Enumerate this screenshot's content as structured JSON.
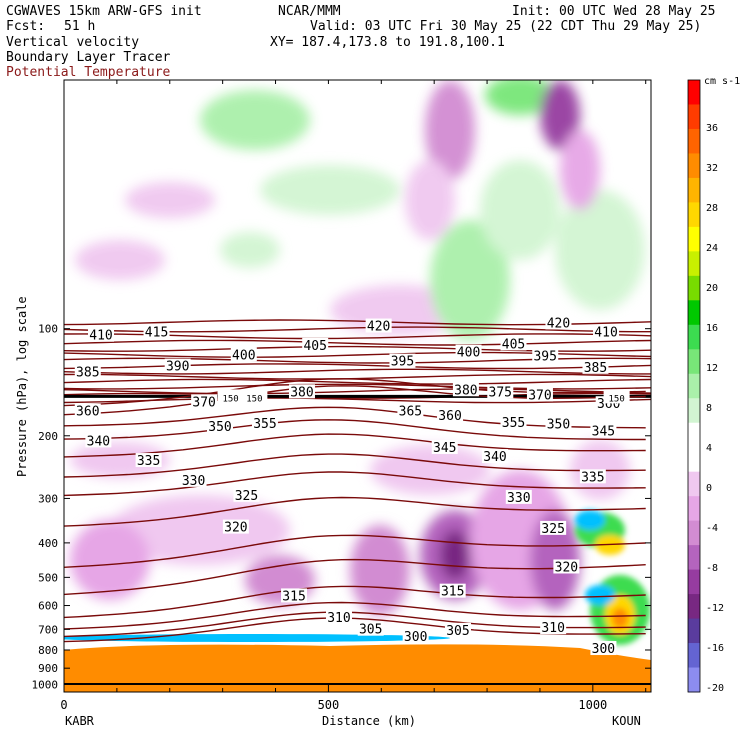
{
  "header": {
    "title_left": "CGWAVES 15km ARW-GFS init",
    "fcst_label": "Fcst:",
    "fcst_value": "51 h",
    "field1": "Vertical velocity",
    "field2": "Boundary Layer Tracer",
    "field3": "Potential Temperature",
    "org": "NCAR/MMM",
    "init": "Init: 00 UTC Wed 28 May 25",
    "valid": "Valid: 03 UTC Fri 30 May 25 (22 CDT Thu 29 May 25)",
    "xy": "XY= 187.4,173.8 to 191.8,100.1"
  },
  "colors": {
    "theta": "#7a0a0a",
    "field3_text": "#8b1a1a",
    "terrain": "#ff8c00"
  },
  "chart_data": {
    "type": "heatmap",
    "xlabel": "Distance (km)",
    "ylabel": "Pressure (hPa), log scale",
    "x_ticks": [
      0,
      500,
      1000
    ],
    "xlim": [
      0,
      1110
    ],
    "y_ticks": [
      100,
      200,
      300,
      400,
      500,
      600,
      700,
      800,
      900,
      1000
    ],
    "ylim": [
      1050,
      20
    ],
    "y_scale": "log",
    "left_station": "KABR",
    "right_station": "KOUN",
    "colorbar": {
      "units": "cm s-1",
      "ticks": [
        36,
        32,
        28,
        24,
        20,
        16,
        12,
        8,
        4,
        0,
        -4,
        -8,
        -12,
        -16,
        -20
      ],
      "colors": [
        "#ff0000",
        "#ff3c00",
        "#ff6400",
        "#ff8c00",
        "#ffb400",
        "#ffd700",
        "#ffff00",
        "#c8f000",
        "#78dc00",
        "#00c800",
        "#3cdc50",
        "#78e678",
        "#aaf0aa",
        "#d2f5d2",
        "#ffffff",
        "#ffffff",
        "#f0c8f0",
        "#e6a6e6",
        "#d28cd2",
        "#b464be",
        "#963ca0",
        "#782882",
        "#5a3c9e",
        "#6464d2",
        "#8c8cf0"
      ]
    },
    "theta_labels": [
      {
        "text": "410",
        "x": 70,
        "p": 104
      },
      {
        "text": "415",
        "x": 175,
        "p": 102
      },
      {
        "text": "420",
        "x": 595,
        "p": 98
      },
      {
        "text": "420",
        "x": 935,
        "p": 96
      },
      {
        "text": "410",
        "x": 1025,
        "p": 102
      },
      {
        "text": "385",
        "x": 45,
        "p": 132
      },
      {
        "text": "390",
        "x": 215,
        "p": 127
      },
      {
        "text": "400",
        "x": 340,
        "p": 118
      },
      {
        "text": "405",
        "x": 475,
        "p": 111
      },
      {
        "text": "395",
        "x": 640,
        "p": 123
      },
      {
        "text": "400",
        "x": 765,
        "p": 116
      },
      {
        "text": "405",
        "x": 850,
        "p": 110
      },
      {
        "text": "395",
        "x": 910,
        "p": 119
      },
      {
        "text": "385",
        "x": 1005,
        "p": 128
      },
      {
        "text": "370",
        "x": 265,
        "p": 160
      },
      {
        "text": "150",
        "x": 315,
        "p": 155
      },
      {
        "text": "150",
        "x": 360,
        "p": 155
      },
      {
        "text": "380",
        "x": 450,
        "p": 150
      },
      {
        "text": "380",
        "x": 760,
        "p": 148
      },
      {
        "text": "375",
        "x": 825,
        "p": 150
      },
      {
        "text": "370",
        "x": 900,
        "p": 153
      },
      {
        "text": "360",
        "x": 1030,
        "p": 162
      },
      {
        "text": "150",
        "x": 1045,
        "p": 155
      },
      {
        "text": "360",
        "x": 45,
        "p": 170
      },
      {
        "text": "365",
        "x": 655,
        "p": 170
      },
      {
        "text": "360",
        "x": 730,
        "p": 175
      },
      {
        "text": "355",
        "x": 850,
        "p": 183
      },
      {
        "text": "350",
        "x": 935,
        "p": 185
      },
      {
        "text": "345",
        "x": 1020,
        "p": 193
      },
      {
        "text": "350",
        "x": 295,
        "p": 188
      },
      {
        "text": "355",
        "x": 380,
        "p": 184
      },
      {
        "text": "340",
        "x": 65,
        "p": 206
      },
      {
        "text": "345",
        "x": 720,
        "p": 215
      },
      {
        "text": "340",
        "x": 815,
        "p": 228
      },
      {
        "text": "335",
        "x": 160,
        "p": 234
      },
      {
        "text": "335",
        "x": 1000,
        "p": 260
      },
      {
        "text": "330",
        "x": 245,
        "p": 266
      },
      {
        "text": "330",
        "x": 860,
        "p": 297
      },
      {
        "text": "325",
        "x": 345,
        "p": 293
      },
      {
        "text": "325",
        "x": 925,
        "p": 363
      },
      {
        "text": "320",
        "x": 325,
        "p": 360
      },
      {
        "text": "320",
        "x": 950,
        "p": 466
      },
      {
        "text": "315",
        "x": 435,
        "p": 562
      },
      {
        "text": "315",
        "x": 735,
        "p": 545
      },
      {
        "text": "310",
        "x": 520,
        "p": 647
      },
      {
        "text": "310",
        "x": 925,
        "p": 690
      },
      {
        "text": "305",
        "x": 580,
        "p": 697
      },
      {
        "text": "305",
        "x": 745,
        "p": 702
      },
      {
        "text": "300",
        "x": 665,
        "p": 730
      },
      {
        "text": "300",
        "x": 1020,
        "p": 790
      }
    ]
  }
}
